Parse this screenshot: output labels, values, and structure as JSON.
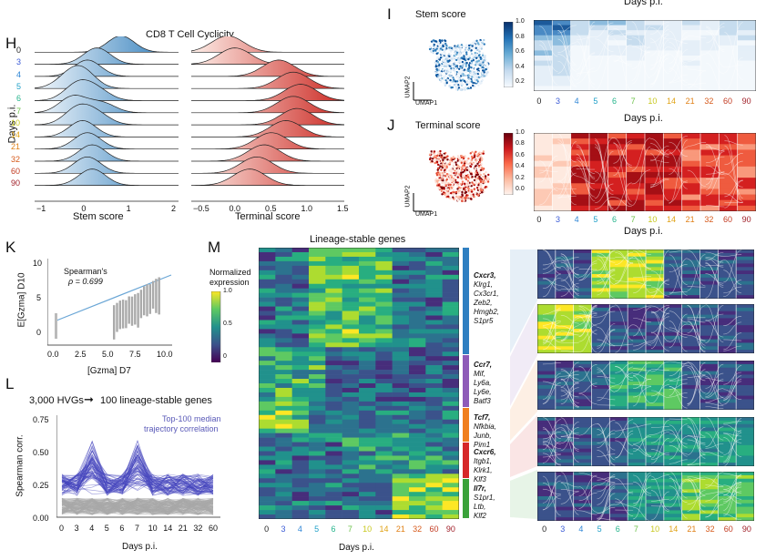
{
  "panels": {
    "H": {
      "label": "H",
      "title": "CD8 T Cell Cyclicity",
      "ylabel": "Days p.i.",
      "left_xlabel": "Stem score",
      "right_xlabel": "Terminal score"
    },
    "I": {
      "label": "I",
      "umap_title": "Stem score",
      "umap_x": "UMAP1",
      "umap_y": "UMAP2",
      "xlabel": "Days p.i.",
      "top_label": "Days p.i."
    },
    "J": {
      "label": "J",
      "umap_title": "Terminal score",
      "umap_x": "UMAP1",
      "umap_y": "UMAP2",
      "xlabel": "Days p.i."
    },
    "K": {
      "label": "K",
      "xlabel": "[Gzma] D7",
      "ylabel": "E[Gzma] D10",
      "stat_name": "Spearman's",
      "stat_value": "ρ = 0.699"
    },
    "L": {
      "label": "L",
      "headline_left": "3,000 HVGs",
      "headline_right": "100 lineage-stable genes",
      "ylabel": "Spearman corr.",
      "xlabel": "Days p.i.",
      "annot_line1": "Top-100 median",
      "annot_line2": "trajectory correlation"
    },
    "M": {
      "label": "M",
      "title": "Lineage-stable genes",
      "xlabel": "Days p.i.",
      "cbar_title_line1": "Normalized",
      "cbar_title_line2": "expression"
    }
  },
  "days": [
    "0",
    "3",
    "4",
    "5",
    "6",
    "7",
    "10",
    "14",
    "21",
    "32",
    "60",
    "90"
  ],
  "days_L": [
    "0",
    "3",
    "4",
    "5",
    "6",
    "7",
    "10",
    "14",
    "21",
    "32",
    "60"
  ],
  "day_colors": [
    "#222222",
    "#3b5bd6",
    "#2f86d6",
    "#20a0c8",
    "#22b38a",
    "#6cc24a",
    "#c8c81e",
    "#e0a317",
    "#e08016",
    "#d65a1b",
    "#c23a21",
    "#a01f28"
  ],
  "ridge_left_ticks": [
    "−1",
    "0",
    "1",
    "2"
  ],
  "ridge_right_ticks": [
    "−0.5",
    "0.0",
    "0.5",
    "1.0",
    "1.5"
  ],
  "cbar_I_ticks": [
    "1.0",
    "0.8",
    "0.6",
    "0.4",
    "0.2"
  ],
  "cbar_J_ticks": [
    "1.0",
    "0.8",
    "0.6",
    "0.4",
    "0.2",
    "0.0"
  ],
  "cbar_M_ticks": [
    "1.0",
    "0.5",
    "0"
  ],
  "K_xticks": [
    "0.0",
    "2.5",
    "5.0",
    "7.5",
    "10.0"
  ],
  "K_yticks": [
    "10",
    "5",
    "0"
  ],
  "L_yticks": [
    "0.75",
    "0.50",
    "0.25",
    "0.00"
  ],
  "gene_groups": [
    {
      "head": "Cxcr3,",
      "genes": [
        "Klrg1,",
        "Cx3cr1,",
        "Zeb2,",
        "Hmgb2,",
        "S1pr5"
      ],
      "color": "#2f7fc1"
    },
    {
      "head": "Ccr7,",
      "genes": [
        "Mif,",
        "Ly6a,",
        "Ly6e,",
        "Batf3"
      ],
      "color": "#8e5bb8"
    },
    {
      "head": "Tcf7,",
      "genes": [
        "Nfkbia,",
        "Junb,",
        "Pim1"
      ],
      "color": "#f07f1e"
    },
    {
      "head": "Cxcr6,",
      "genes": [
        "Itgb1,",
        "Klrk1,",
        "Klf3"
      ],
      "color": "#d62728"
    },
    {
      "head": "Il7r,",
      "genes": [
        "S1pr1,",
        "Ltb,",
        "Klf2"
      ],
      "color": "#3aa23a"
    }
  ],
  "colors": {
    "blue_dark": "#08306b",
    "red_dark": "#67000d",
    "viridis_low": "#440154",
    "viridis_high": "#fde725"
  }
}
